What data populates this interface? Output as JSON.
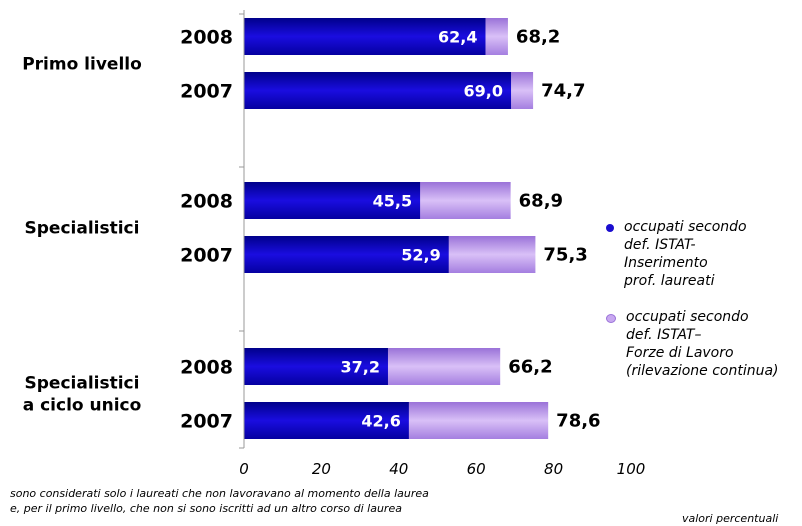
{
  "chart_data": {
    "type": "bar",
    "orientation": "horizontal",
    "groups": [
      {
        "label": "Primo livello",
        "bars": [
          {
            "year": "2008",
            "values": [
              62.4,
              68.2
            ],
            "labels": [
              "62,4",
              "68,2"
            ]
          },
          {
            "year": "2007",
            "values": [
              69.0,
              74.7
            ],
            "labels": [
              "69,0",
              "74,7"
            ]
          }
        ]
      },
      {
        "label": "Specialistici",
        "bars": [
          {
            "year": "2008",
            "values": [
              45.5,
              68.9
            ],
            "labels": [
              "45,5",
              "68,9"
            ]
          },
          {
            "year": "2007",
            "values": [
              52.9,
              75.3
            ],
            "labels": [
              "52,9",
              "75,3"
            ]
          }
        ]
      },
      {
        "label": "Specialistici\na ciclo unico",
        "bars": [
          {
            "year": "2008",
            "values": [
              37.2,
              66.2
            ],
            "labels": [
              "37,2",
              "66,2"
            ]
          },
          {
            "year": "2007",
            "values": [
              42.6,
              78.6
            ],
            "labels": [
              "42,6",
              "78,6"
            ]
          }
        ]
      }
    ],
    "series": [
      {
        "name": "occupati secondo\ndef. ISTAT-\nInserimento\nprof. laureati",
        "color": "#1a0dcf"
      },
      {
        "name": "occupati secondo\ndef. ISTAT–\nForze di Lavoro\n(rilevazione continua)",
        "color": "#c8a8f0"
      }
    ],
    "xlim": [
      0,
      100
    ],
    "xticks": [
      "0",
      "20",
      "40",
      "60",
      "80",
      "100"
    ],
    "grid": false,
    "legend_position": "right"
  },
  "note": "sono considerati solo i laureati che non lavoravano al momento della laurea\ne, per il primo livello, che non si sono iscritti ad un altro corso di laurea",
  "units": "valori percentuali"
}
